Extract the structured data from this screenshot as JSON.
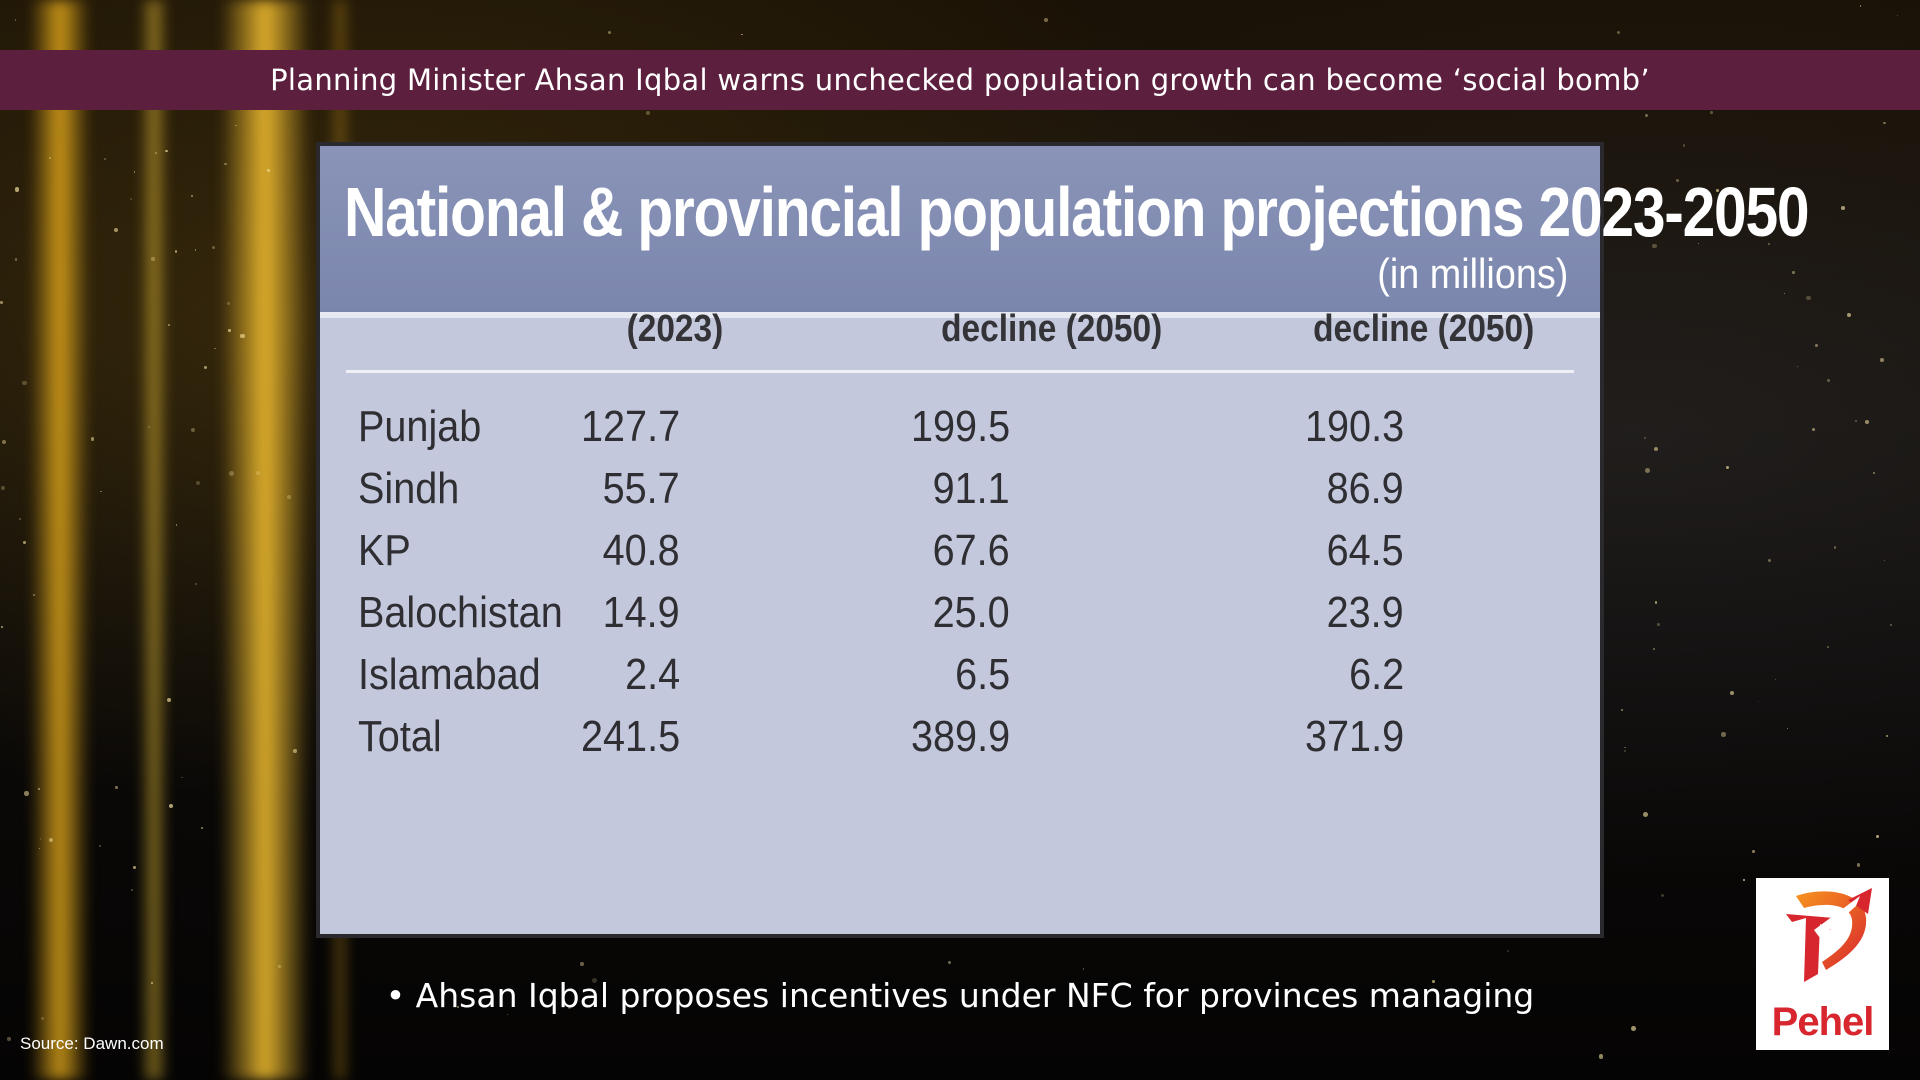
{
  "ticker": {
    "headline": "Planning Minister Ahsan Iqbal warns unchecked population growth can become ‘social bomb’"
  },
  "card": {
    "title": "National & provincial population projections 2023-2050",
    "subtitle": "(in millions)",
    "column_headers": [
      "(2023)",
      "decline (2050)",
      "decline (2050)"
    ],
    "rows": [
      {
        "region": "Punjab",
        "y2023": "127.7",
        "proj_a": "199.5",
        "proj_b": "190.3"
      },
      {
        "region": "Sindh",
        "y2023": "55.7",
        "proj_a": "91.1",
        "proj_b": "86.9"
      },
      {
        "region": "KP",
        "y2023": "40.8",
        "proj_a": "67.6",
        "proj_b": "64.5"
      },
      {
        "region": "Balochistan",
        "y2023": "14.9",
        "proj_a": "25.0",
        "proj_b": "23.9"
      },
      {
        "region": "Islamabad",
        "y2023": "2.4",
        "proj_a": "6.5",
        "proj_b": "6.2"
      },
      {
        "region": "Total",
        "y2023": "241.5",
        "proj_a": "389.9",
        "proj_b": "371.9"
      }
    ]
  },
  "bullet": {
    "text": "• Ahsan Iqbal proposes incentives under NFC for provinces managing"
  },
  "source": {
    "text": "Source: Dawn.com"
  },
  "logo": {
    "name": "Pehel",
    "icon": "pehel-arrow-logo-icon",
    "brand_color": "#d8262e"
  },
  "colors": {
    "ticker_bg": "#5c1f3e",
    "card_header_bg": "#8a94b8",
    "card_body_bg": "#c4c8dc"
  }
}
